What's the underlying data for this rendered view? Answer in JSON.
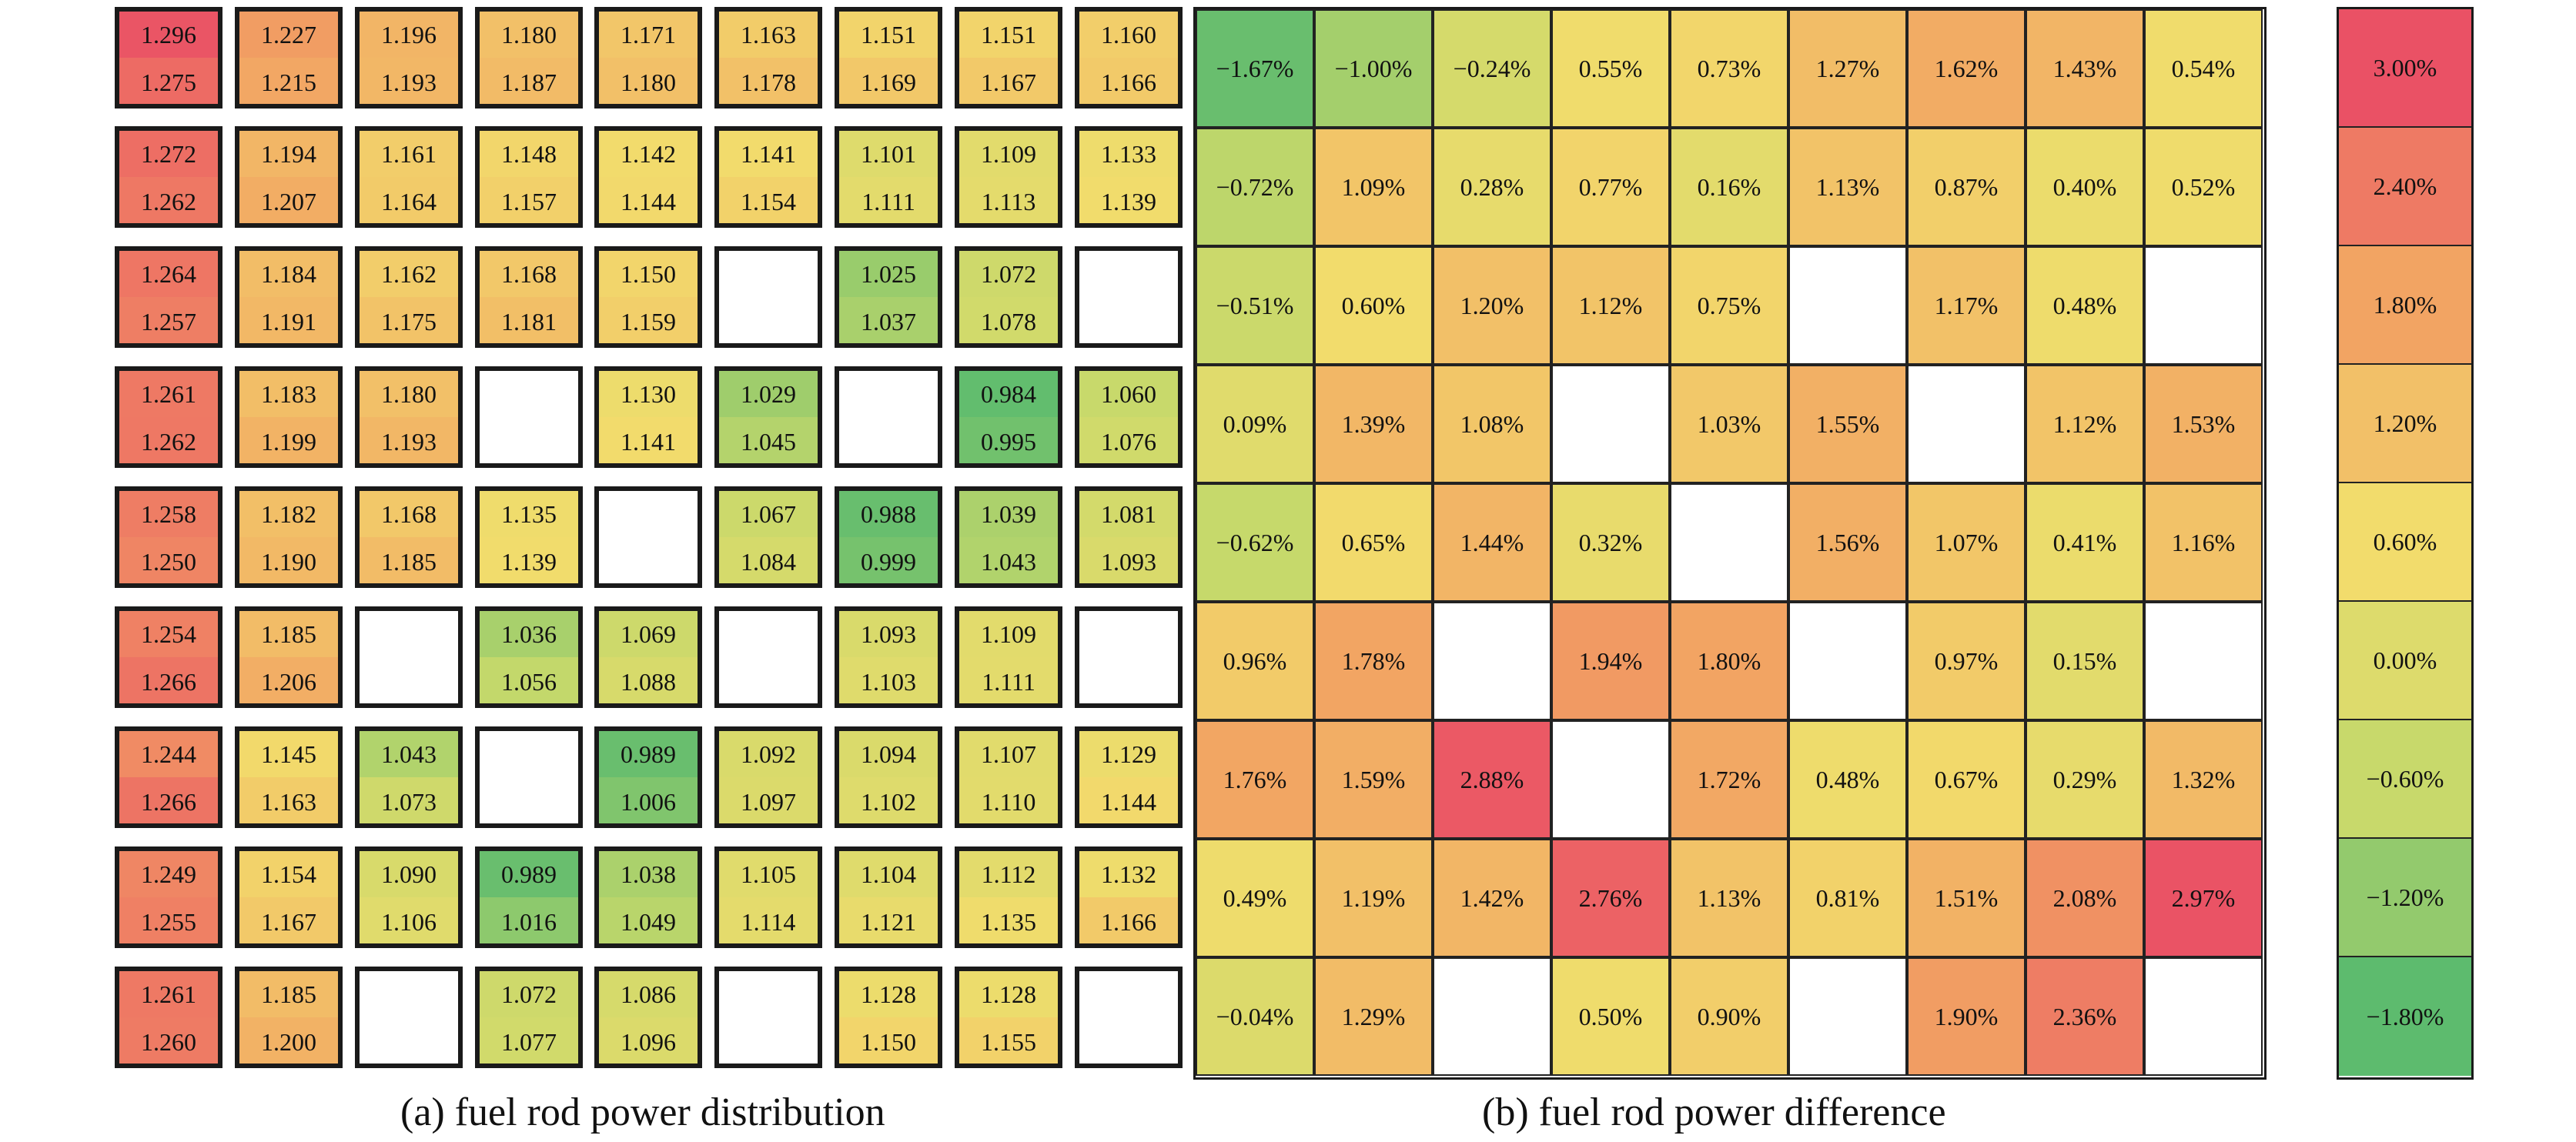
{
  "captions": {
    "a": "(a) fuel rod power distribution",
    "b": "(b) fuel rod power difference"
  },
  "colors": {
    "scale_red": "#ea5165",
    "scale_orange": "#f2a463",
    "scale_yellow": "#f2dc6c",
    "scale_lime": "#c8d96b",
    "scale_green": "#5dbb6e",
    "empty": "#ffffff"
  },
  "distribution": [
    [
      [
        "1.296",
        "1.275"
      ],
      [
        "1.227",
        "1.215"
      ],
      [
        "1.196",
        "1.193"
      ],
      [
        "1.180",
        "1.187"
      ],
      [
        "1.171",
        "1.180"
      ],
      [
        "1.163",
        "1.178"
      ],
      [
        "1.151",
        "1.169"
      ],
      [
        "1.151",
        "1.167"
      ],
      [
        "1.160",
        "1.166"
      ]
    ],
    [
      [
        "1.272",
        "1.262"
      ],
      [
        "1.194",
        "1.207"
      ],
      [
        "1.161",
        "1.164"
      ],
      [
        "1.148",
        "1.157"
      ],
      [
        "1.142",
        "1.144"
      ],
      [
        "1.141",
        "1.154"
      ],
      [
        "1.101",
        "1.111"
      ],
      [
        "1.109",
        "1.113"
      ],
      [
        "1.133",
        "1.139"
      ]
    ],
    [
      [
        "1.264",
        "1.257"
      ],
      [
        "1.184",
        "1.191"
      ],
      [
        "1.162",
        "1.175"
      ],
      [
        "1.168",
        "1.181"
      ],
      [
        "1.150",
        "1.159"
      ],
      null,
      [
        "1.025",
        "1.037"
      ],
      [
        "1.072",
        "1.078"
      ],
      null
    ],
    [
      [
        "1.261",
        "1.262"
      ],
      [
        "1.183",
        "1.199"
      ],
      [
        "1.180",
        "1.193"
      ],
      null,
      [
        "1.130",
        "1.141"
      ],
      [
        "1.029",
        "1.045"
      ],
      null,
      [
        "0.984",
        "0.995"
      ],
      [
        "1.060",
        "1.076"
      ]
    ],
    [
      [
        "1.258",
        "1.250"
      ],
      [
        "1.182",
        "1.190"
      ],
      [
        "1.168",
        "1.185"
      ],
      [
        "1.135",
        "1.139"
      ],
      null,
      [
        "1.067",
        "1.084"
      ],
      [
        "0.988",
        "0.999"
      ],
      [
        "1.039",
        "1.043"
      ],
      [
        "1.081",
        "1.093"
      ]
    ],
    [
      [
        "1.254",
        "1.266"
      ],
      [
        "1.185",
        "1.206"
      ],
      null,
      [
        "1.036",
        "1.056"
      ],
      [
        "1.069",
        "1.088"
      ],
      null,
      [
        "1.093",
        "1.103"
      ],
      [
        "1.109",
        "1.111"
      ],
      null
    ],
    [
      [
        "1.244",
        "1.266"
      ],
      [
        "1.145",
        "1.163"
      ],
      [
        "1.043",
        "1.073"
      ],
      null,
      [
        "0.989",
        "1.006"
      ],
      [
        "1.092",
        "1.097"
      ],
      [
        "1.094",
        "1.102"
      ],
      [
        "1.107",
        "1.110"
      ],
      [
        "1.129",
        "1.144"
      ]
    ],
    [
      [
        "1.249",
        "1.255"
      ],
      [
        "1.154",
        "1.167"
      ],
      [
        "1.090",
        "1.106"
      ],
      [
        "0.989",
        "1.016"
      ],
      [
        "1.038",
        "1.049"
      ],
      [
        "1.105",
        "1.114"
      ],
      [
        "1.104",
        "1.121"
      ],
      [
        "1.112",
        "1.135"
      ],
      [
        "1.132",
        "1.166"
      ]
    ],
    [
      [
        "1.261",
        "1.260"
      ],
      [
        "1.185",
        "1.200"
      ],
      null,
      [
        "1.072",
        "1.077"
      ],
      [
        "1.086",
        "1.096"
      ],
      null,
      [
        "1.128",
        "1.150"
      ],
      [
        "1.128",
        "1.155"
      ],
      null
    ]
  ],
  "difference": [
    [
      "−1.67%",
      "−1.00%",
      "−0.24%",
      "0.55%",
      "0.73%",
      "1.27%",
      "1.62%",
      "1.43%",
      "0.54%"
    ],
    [
      "−0.72%",
      "1.09%",
      "0.28%",
      "0.77%",
      "0.16%",
      "1.13%",
      "0.87%",
      "0.40%",
      "0.52%"
    ],
    [
      "−0.51%",
      "0.60%",
      "1.20%",
      "1.12%",
      "0.75%",
      null,
      "1.17%",
      "0.48%",
      null
    ],
    [
      "0.09%",
      "1.39%",
      "1.08%",
      null,
      "1.03%",
      "1.55%",
      null,
      "1.12%",
      "1.53%"
    ],
    [
      "−0.62%",
      "0.65%",
      "1.44%",
      "0.32%",
      null,
      "1.56%",
      "1.07%",
      "0.41%",
      "1.16%"
    ],
    [
      "0.96%",
      "1.78%",
      null,
      "1.94%",
      "1.80%",
      null,
      "0.97%",
      "0.15%",
      null
    ],
    [
      "1.76%",
      "1.59%",
      "2.88%",
      null,
      "1.72%",
      "0.48%",
      "0.67%",
      "0.29%",
      "1.32%"
    ],
    [
      "0.49%",
      "1.19%",
      "1.42%",
      "2.76%",
      "1.13%",
      "0.81%",
      "1.51%",
      "2.08%",
      "2.97%"
    ],
    [
      "−0.04%",
      "1.29%",
      null,
      "0.50%",
      "0.90%",
      null,
      "1.90%",
      "2.36%",
      null
    ]
  ],
  "legend": [
    "3.00%",
    "2.40%",
    "1.80%",
    "1.20%",
    "0.60%",
    "0.00%",
    "−0.60%",
    "−1.20%",
    "−1.80%"
  ]
}
